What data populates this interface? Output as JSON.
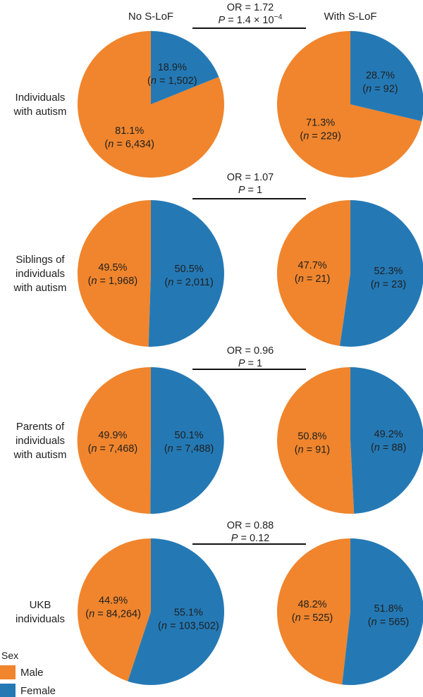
{
  "chart_data": {
    "type": "pie",
    "column_headers": [
      "No S-LoF",
      "With S-LoF"
    ],
    "legend": {
      "title": "Sex",
      "items": [
        {
          "label": "Male",
          "color": "#f0852d"
        },
        {
          "label": "Female",
          "color": "#2479b5"
        }
      ]
    },
    "rows": [
      {
        "label": [
          "Individuals",
          "with autism"
        ],
        "or_text": "OR = 1.72",
        "p_label": "P",
        "p_value": " = 1.4 × 10",
        "p_exponent": "−4",
        "pies": [
          {
            "column": "No S-LoF",
            "slices": [
              {
                "name": "Male",
                "percent": 81.1,
                "pct_label": "81.1%",
                "n_label": " = 6,434)"
              },
              {
                "name": "Female",
                "percent": 18.9,
                "pct_label": "18.9%",
                "n_label": " = 1,502)"
              }
            ]
          },
          {
            "column": "With S-LoF",
            "slices": [
              {
                "name": "Male",
                "percent": 71.3,
                "pct_label": "71.3%",
                "n_label": " = 229)"
              },
              {
                "name": "Female",
                "percent": 28.7,
                "pct_label": "28.7%",
                "n_label": " = 92)"
              }
            ]
          }
        ]
      },
      {
        "label": [
          "Siblings of",
          "individuals",
          "with autism"
        ],
        "or_text": "OR = 1.07",
        "p_label": "P",
        "p_value": " = 1",
        "p_exponent": "",
        "pies": [
          {
            "column": "No S-LoF",
            "slices": [
              {
                "name": "Male",
                "percent": 49.5,
                "pct_label": "49.5%",
                "n_label": " = 1,968)"
              },
              {
                "name": "Female",
                "percent": 50.5,
                "pct_label": "50.5%",
                "n_label": " = 2,011)"
              }
            ]
          },
          {
            "column": "With S-LoF",
            "slices": [
              {
                "name": "Male",
                "percent": 47.7,
                "pct_label": "47.7%",
                "n_label": " = 21)"
              },
              {
                "name": "Female",
                "percent": 52.3,
                "pct_label": "52.3%",
                "n_label": " = 23)"
              }
            ]
          }
        ]
      },
      {
        "label": [
          "Parents of",
          "individuals",
          "with autism"
        ],
        "or_text": "OR = 0.96",
        "p_label": "P",
        "p_value": " = 1",
        "p_exponent": "",
        "pies": [
          {
            "column": "No S-LoF",
            "slices": [
              {
                "name": "Male",
                "percent": 49.9,
                "pct_label": "49.9%",
                "n_label": " = 7,468)"
              },
              {
                "name": "Female",
                "percent": 50.1,
                "pct_label": "50.1%",
                "n_label": " = 7,488)"
              }
            ]
          },
          {
            "column": "With S-LoF",
            "slices": [
              {
                "name": "Male",
                "percent": 50.8,
                "pct_label": "50.8%",
                "n_label": " = 91)"
              },
              {
                "name": "Female",
                "percent": 49.2,
                "pct_label": "49.2%",
                "n_label": " = 88)"
              }
            ]
          }
        ]
      },
      {
        "label": [
          "UKB",
          "individuals"
        ],
        "or_text": "OR = 0.88",
        "p_label": "P",
        "p_value": " = 0.12",
        "p_exponent": "",
        "pies": [
          {
            "column": "No S-LoF",
            "slices": [
              {
                "name": "Male",
                "percent": 44.9,
                "pct_label": "44.9%",
                "n_label": " = 84,264)"
              },
              {
                "name": "Female",
                "percent": 55.1,
                "pct_label": "55.1%",
                "n_label": " = 103,502)"
              }
            ]
          },
          {
            "column": "With S-LoF",
            "slices": [
              {
                "name": "Male",
                "percent": 48.2,
                "pct_label": "48.2%",
                "n_label": " = 525)"
              },
              {
                "name": "Female",
                "percent": 51.8,
                "pct_label": "51.8%",
                "n_label": " = 565)"
              }
            ]
          }
        ]
      }
    ]
  }
}
